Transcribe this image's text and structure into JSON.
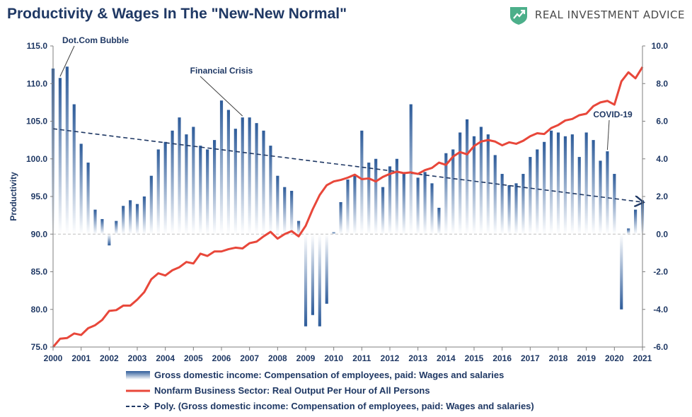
{
  "header": {
    "title": "Productivity & Wages In The \"New-New Normal\"",
    "brand_name": "REAL INVESTMENT ADVICE",
    "brand_logo_icon": "rising-arrow-shield-icon",
    "brand_color": "#4caf8a"
  },
  "chart_data": {
    "type": "bar+line",
    "title": "Productivity & Wages In The \"New-New Normal\"",
    "ylabel_left": "Productivity",
    "ylim_left": [
      75.0,
      115.0
    ],
    "ylim_right": [
      -6.0,
      10.0
    ],
    "left_ticks": [
      "75.0",
      "80.0",
      "85.0",
      "90.0",
      "95.0",
      "100.0",
      "105.0",
      "110.0",
      "115.0"
    ],
    "right_ticks": [
      "-6.0",
      "-4.0",
      "-2.0",
      "0.0",
      "2.0",
      "4.0",
      "6.0",
      "8.0",
      "10.0"
    ],
    "x_ticks": [
      "2000",
      "2001",
      "2002",
      "2003",
      "2004",
      "2005",
      "2006",
      "2007",
      "2008",
      "2009",
      "2010",
      "2011",
      "2012",
      "2013",
      "2014",
      "2015",
      "2016",
      "2017",
      "2018",
      "2019",
      "2020",
      "2021"
    ],
    "xlim": [
      2000.0,
      2021.0
    ],
    "colors": {
      "bars": "#2e5c9a",
      "line": "#e8473a",
      "trend": "#1f3864",
      "axis_text": "#1f3864"
    },
    "series": [
      {
        "name": "Gross domestic income: Compensation of employees, paid: Wages and salaries",
        "type": "bar",
        "axis": "right",
        "x": [
          2000.0,
          2000.25,
          2000.5,
          2000.75,
          2001.0,
          2001.25,
          2001.5,
          2001.75,
          2002.0,
          2002.25,
          2002.5,
          2002.75,
          2003.0,
          2003.25,
          2003.5,
          2003.75,
          2004.0,
          2004.25,
          2004.5,
          2004.75,
          2005.0,
          2005.25,
          2005.5,
          2005.75,
          2006.0,
          2006.25,
          2006.5,
          2006.75,
          2007.0,
          2007.25,
          2007.5,
          2007.75,
          2008.0,
          2008.25,
          2008.5,
          2008.75,
          2009.0,
          2009.25,
          2009.5,
          2009.75,
          2010.0,
          2010.25,
          2010.5,
          2010.75,
          2011.0,
          2011.25,
          2011.5,
          2011.75,
          2012.0,
          2012.25,
          2012.5,
          2012.75,
          2013.0,
          2013.25,
          2013.5,
          2013.75,
          2014.0,
          2014.25,
          2014.5,
          2014.75,
          2015.0,
          2015.25,
          2015.5,
          2015.75,
          2016.0,
          2016.25,
          2016.5,
          2016.75,
          2017.0,
          2017.25,
          2017.5,
          2017.75,
          2018.0,
          2018.25,
          2018.5,
          2018.75,
          2019.0,
          2019.25,
          2019.5,
          2019.75,
          2020.0,
          2020.25,
          2020.5,
          2020.75,
          2021.0
        ],
        "values": [
          8.8,
          8.3,
          8.9,
          6.9,
          4.8,
          3.8,
          1.3,
          0.8,
          -0.6,
          0.7,
          1.5,
          1.8,
          1.6,
          2.0,
          3.1,
          4.5,
          4.9,
          5.5,
          6.2,
          5.3,
          5.7,
          4.7,
          4.5,
          5.0,
          7.1,
          6.6,
          5.6,
          6.2,
          6.2,
          5.9,
          5.5,
          4.7,
          3.1,
          2.5,
          2.3,
          0.7,
          -4.9,
          -4.3,
          -4.9,
          -3.7,
          0.1,
          1.7,
          2.9,
          3.1,
          5.5,
          3.8,
          4.0,
          2.5,
          3.6,
          4.0,
          3.2,
          6.9,
          3.0,
          3.3,
          2.7,
          1.4,
          4.3,
          4.5,
          5.4,
          6.1,
          5.2,
          5.7,
          5.3,
          4.2,
          3.2,
          2.6,
          2.7,
          3.2,
          4.1,
          4.5,
          4.9,
          5.5,
          5.4,
          5.2,
          5.3,
          4.1,
          5.4,
          5.0,
          3.9,
          4.4,
          3.2,
          -4.0,
          0.3,
          1.3,
          1.8
        ]
      },
      {
        "name": "Nonfarm Business Sector: Real Output Per Hour of All Persons",
        "type": "line",
        "axis": "left",
        "x": [
          2000.0,
          2000.25,
          2000.5,
          2000.75,
          2001.0,
          2001.25,
          2001.5,
          2001.75,
          2002.0,
          2002.25,
          2002.5,
          2002.75,
          2003.0,
          2003.25,
          2003.5,
          2003.75,
          2004.0,
          2004.25,
          2004.5,
          2004.75,
          2005.0,
          2005.25,
          2005.5,
          2005.75,
          2006.0,
          2006.25,
          2006.5,
          2006.75,
          2007.0,
          2007.25,
          2007.5,
          2007.75,
          2008.0,
          2008.25,
          2008.5,
          2008.75,
          2009.0,
          2009.25,
          2009.5,
          2009.75,
          2010.0,
          2010.25,
          2010.5,
          2010.75,
          2011.0,
          2011.25,
          2011.5,
          2011.75,
          2012.0,
          2012.25,
          2012.5,
          2012.75,
          2013.0,
          2013.25,
          2013.5,
          2013.75,
          2014.0,
          2014.25,
          2014.5,
          2014.75,
          2015.0,
          2015.25,
          2015.5,
          2015.75,
          2016.0,
          2016.25,
          2016.5,
          2016.75,
          2017.0,
          2017.25,
          2017.5,
          2017.75,
          2018.0,
          2018.25,
          2018.5,
          2018.75,
          2019.0,
          2019.25,
          2019.5,
          2019.75,
          2020.0,
          2020.25,
          2020.5,
          2020.75,
          2021.0
        ],
        "values": [
          75.0,
          76.1,
          76.2,
          76.8,
          76.6,
          77.5,
          77.9,
          78.6,
          79.8,
          79.9,
          80.5,
          80.5,
          81.3,
          82.3,
          84.0,
          84.8,
          84.5,
          85.2,
          85.6,
          86.3,
          86.1,
          87.4,
          87.1,
          87.7,
          87.7,
          88.0,
          88.2,
          88.1,
          88.8,
          89.0,
          89.7,
          90.3,
          89.4,
          90.0,
          90.4,
          89.7,
          91.1,
          93.3,
          95.2,
          96.5,
          97.0,
          97.2,
          97.5,
          97.9,
          97.3,
          97.4,
          97.0,
          97.6,
          98.0,
          98.3,
          98.1,
          98.2,
          98.0,
          98.5,
          98.8,
          99.5,
          99.2,
          100.3,
          100.9,
          100.6,
          101.7,
          102.3,
          102.5,
          102.3,
          101.8,
          102.2,
          102.0,
          102.4,
          103.0,
          103.4,
          103.3,
          104.1,
          104.5,
          105.1,
          105.3,
          105.8,
          106.0,
          107.0,
          107.5,
          107.7,
          107.2,
          110.3,
          111.5,
          110.7,
          112.2
        ]
      },
      {
        "name": "Poly. (Gross domestic income: Compensation of employees, paid: Wages and salaries)",
        "type": "line-dashed",
        "axis": "right",
        "x": [
          2000.0,
          2021.0
        ],
        "values": [
          5.6,
          1.7
        ]
      }
    ],
    "annotations": [
      {
        "text": "Dot.Com Bubble",
        "x": 2000.25,
        "y_right": 8.3
      },
      {
        "text": "Financial Crisis",
        "x": 2006.75,
        "y_right": 6.2
      },
      {
        "text": "COVID-19",
        "x": 2019.75,
        "y_right": 4.4
      }
    ],
    "grid": false,
    "legend_position": "bottom"
  }
}
